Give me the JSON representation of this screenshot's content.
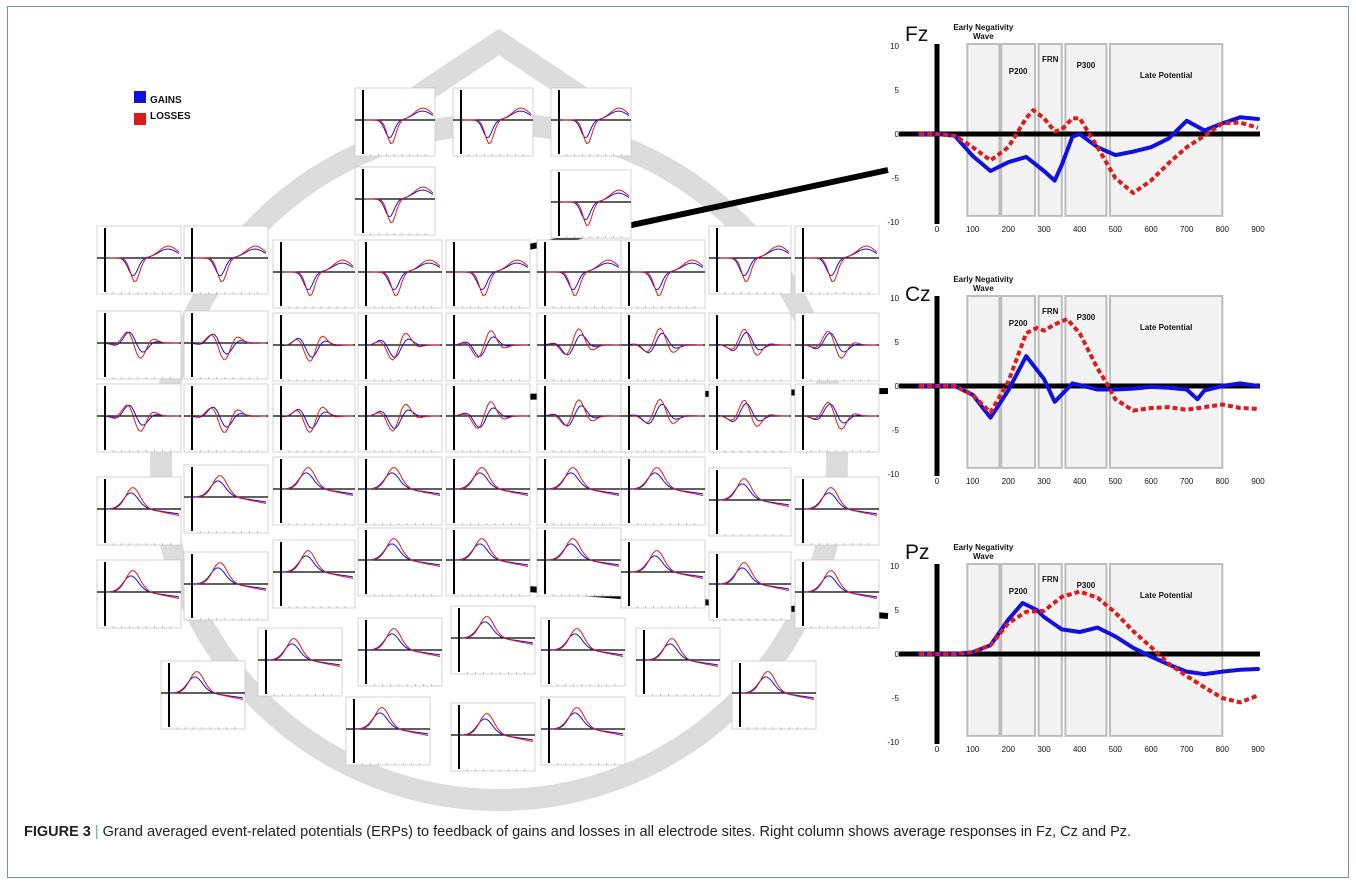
{
  "legend": {
    "items": [
      {
        "label": "GAINS",
        "color": "#1010e0"
      },
      {
        "label": "LOSSES",
        "color": "#e01a1a"
      }
    ]
  },
  "colors": {
    "gains": "#1010e0",
    "losses": "#e01a1a",
    "head_outline": "#dcdcdc",
    "connector": "#000000"
  },
  "caption": {
    "figure_label": "FIGURE 3",
    "separator": "|",
    "text": "Grand averaged event-related potentials (ERPs) to feedback of gains and losses in all electrode sites. Right column shows average responses in Fz, Cz and Pz."
  },
  "chart_data": [
    {
      "type": "line",
      "title": "Fz",
      "xlim": [
        -50,
        900
      ],
      "ylim": [
        -10,
        10
      ],
      "xticks": [
        0,
        100,
        200,
        300,
        400,
        500,
        600,
        700,
        800,
        900
      ],
      "yticks": [
        -10,
        -5,
        0,
        5,
        10
      ],
      "components": [
        {
          "label": "Early Negativity\nWave",
          "start": 85,
          "end": 175
        },
        {
          "label": "P200",
          "start": 180,
          "end": 275
        },
        {
          "label": "FRN",
          "start": 285,
          "end": 350
        },
        {
          "label": "P300",
          "start": 360,
          "end": 475
        },
        {
          "label": "Late Potential",
          "start": 485,
          "end": 800
        }
      ],
      "series": [
        {
          "name": "GAINS",
          "x": [
            -50,
            0,
            50,
            100,
            150,
            200,
            250,
            300,
            330,
            350,
            380,
            400,
            450,
            500,
            550,
            600,
            650,
            700,
            750,
            800,
            850,
            900
          ],
          "y": [
            0,
            0,
            -0.2,
            -2.5,
            -4.2,
            -3.2,
            -2.6,
            -4.2,
            -5.3,
            -3.5,
            -0.3,
            0,
            -1.5,
            -2.4,
            -2,
            -1.5,
            -0.5,
            1.5,
            0.4,
            1.2,
            1.9,
            1.7
          ]
        },
        {
          "name": "LOSSES",
          "x": [
            -50,
            0,
            50,
            100,
            150,
            200,
            250,
            270,
            300,
            330,
            350,
            380,
            400,
            450,
            500,
            550,
            600,
            650,
            700,
            750,
            800,
            850,
            900
          ],
          "y": [
            0,
            0,
            -0.2,
            -1.5,
            -3,
            -1.5,
            1.8,
            2.7,
            1.8,
            0.3,
            0.5,
            1.8,
            1.8,
            -1.5,
            -5,
            -6.7,
            -5.3,
            -3.3,
            -1.5,
            -0.2,
            1.2,
            1.3,
            0.7
          ]
        }
      ]
    },
    {
      "type": "line",
      "title": "Cz",
      "xlim": [
        -50,
        900
      ],
      "ylim": [
        -10,
        10
      ],
      "xticks": [
        0,
        100,
        200,
        300,
        400,
        500,
        600,
        700,
        800,
        900
      ],
      "yticks": [
        -10,
        -5,
        0,
        5,
        10
      ],
      "components": [
        {
          "label": "Early Negativity\nWave",
          "start": 85,
          "end": 175
        },
        {
          "label": "P200",
          "start": 180,
          "end": 275
        },
        {
          "label": "FRN",
          "start": 285,
          "end": 350
        },
        {
          "label": "P300",
          "start": 360,
          "end": 475
        },
        {
          "label": "Late Potential",
          "start": 485,
          "end": 800
        }
      ],
      "series": [
        {
          "name": "GAINS",
          "x": [
            -50,
            0,
            50,
            100,
            150,
            200,
            250,
            300,
            330,
            380,
            400,
            450,
            500,
            550,
            600,
            650,
            700,
            730,
            750,
            800,
            850,
            900
          ],
          "y": [
            0,
            0,
            0,
            -1,
            -3.6,
            -0.5,
            3.4,
            0.8,
            -1.8,
            0.3,
            0.1,
            -0.4,
            -0.4,
            -0.3,
            -0.1,
            -0.2,
            -0.4,
            -1.5,
            -0.5,
            0,
            0.3,
            0
          ]
        },
        {
          "name": "LOSSES",
          "x": [
            -50,
            0,
            50,
            100,
            150,
            200,
            250,
            280,
            300,
            330,
            365,
            400,
            450,
            480,
            500,
            550,
            600,
            650,
            700,
            750,
            800,
            850,
            900
          ],
          "y": [
            0,
            0,
            0,
            -1,
            -3,
            0.5,
            6,
            6.6,
            6.3,
            7,
            7.6,
            6,
            2,
            0,
            -1.5,
            -2.8,
            -2.5,
            -2.4,
            -2.7,
            -2.4,
            -2.1,
            -2.5,
            -2.6
          ]
        }
      ]
    },
    {
      "type": "line",
      "title": "Pz",
      "xlim": [
        -50,
        900
      ],
      "ylim": [
        -10,
        10
      ],
      "xticks": [
        0,
        100,
        200,
        300,
        400,
        500,
        600,
        700,
        800,
        900
      ],
      "yticks": [
        -10,
        -5,
        0,
        5,
        10
      ],
      "components": [
        {
          "label": "Early Negativity\nWave",
          "start": 85,
          "end": 175
        },
        {
          "label": "P200",
          "start": 180,
          "end": 275
        },
        {
          "label": "FRN",
          "start": 285,
          "end": 350
        },
        {
          "label": "P300",
          "start": 360,
          "end": 475
        },
        {
          "label": "Late Potential",
          "start": 485,
          "end": 800
        }
      ],
      "series": [
        {
          "name": "GAINS",
          "x": [
            -50,
            0,
            50,
            100,
            150,
            200,
            240,
            280,
            300,
            350,
            400,
            450,
            500,
            550,
            600,
            650,
            700,
            750,
            800,
            850,
            900
          ],
          "y": [
            0,
            0,
            0,
            0.2,
            1,
            3.9,
            5.8,
            5,
            4.2,
            2.8,
            2.5,
            3,
            2,
            0.7,
            -0.3,
            -1.2,
            -2,
            -2.3,
            -2,
            -1.8,
            -1.7
          ]
        },
        {
          "name": "LOSSES",
          "x": [
            -50,
            0,
            50,
            100,
            150,
            200,
            250,
            300,
            350,
            400,
            450,
            500,
            550,
            600,
            650,
            700,
            750,
            800,
            850,
            900
          ],
          "y": [
            0,
            0,
            0,
            0.2,
            1,
            3.5,
            4.8,
            4.9,
            6.5,
            7.1,
            6.4,
            4.7,
            2.6,
            0.8,
            -1.1,
            -2.5,
            -3.8,
            -5,
            -5.5,
            -4.7
          ]
        }
      ]
    }
  ]
}
